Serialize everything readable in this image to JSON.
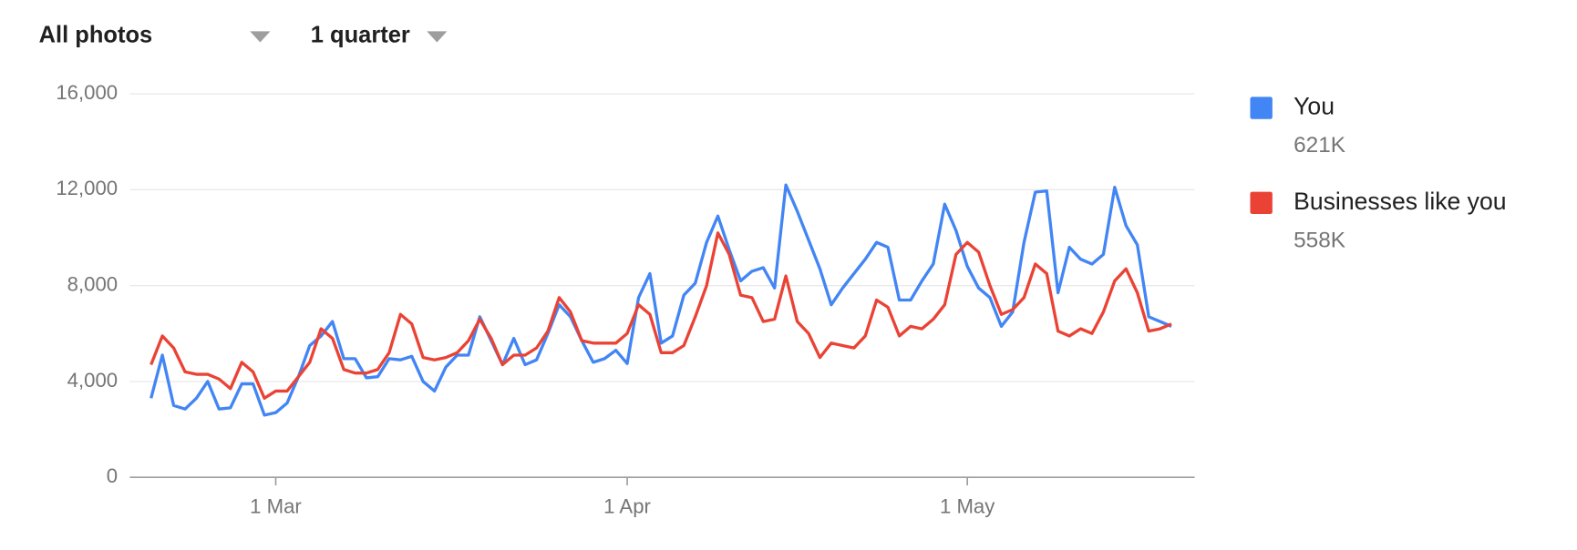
{
  "filters": {
    "photos": "All photos",
    "period": "1 quarter"
  },
  "chart_data": {
    "type": "line",
    "categories": [
      null,
      null,
      null,
      null,
      null,
      null,
      null,
      null,
      null,
      null,
      null,
      "1 Mar",
      null,
      null,
      null,
      null,
      null,
      null,
      null,
      null,
      null,
      null,
      null,
      null,
      null,
      null,
      null,
      null,
      null,
      null,
      null,
      null,
      null,
      null,
      null,
      null,
      null,
      null,
      null,
      null,
      null,
      null,
      "1 Apr",
      null,
      null,
      null,
      null,
      null,
      null,
      null,
      null,
      null,
      null,
      null,
      null,
      null,
      null,
      null,
      null,
      null,
      null,
      null,
      null,
      null,
      null,
      null,
      null,
      null,
      null,
      null,
      null,
      null,
      "1 May",
      null,
      null,
      null,
      null,
      null,
      null,
      null,
      null,
      null,
      null,
      null,
      null,
      null,
      null,
      null,
      null,
      null,
      null
    ],
    "series": [
      {
        "name": "You",
        "summary": "621K",
        "color": "#4285f4",
        "values": [
          3300,
          5100,
          3000,
          2850,
          3300,
          4000,
          2850,
          2900,
          3900,
          3900,
          2600,
          2700,
          3100,
          4200,
          5500,
          5900,
          6500,
          4950,
          4950,
          4150,
          4200,
          4950,
          4900,
          5050,
          4000,
          3600,
          4600,
          5100,
          5100,
          6700,
          5700,
          4700,
          5800,
          4700,
          4900,
          6000,
          7200,
          6700,
          5700,
          4800,
          4950,
          5300,
          4750,
          7500,
          8500,
          5600,
          5900,
          7600,
          8100,
          9800,
          10900,
          9500,
          8200,
          8600,
          8750,
          7900,
          12200,
          11100,
          9900,
          8700,
          7200,
          7900,
          8500,
          9100,
          9800,
          9600,
          7400,
          7400,
          8200,
          8900,
          11400,
          10300,
          8800,
          7900,
          7500,
          6300,
          6900,
          9800,
          11900,
          11950,
          7700,
          9600,
          9100,
          8900,
          9300,
          12100,
          10500,
          9700,
          6700,
          6500,
          6300
        ]
      },
      {
        "name": "Businesses like you",
        "summary": "558K",
        "color": "#ea4335",
        "values": [
          4700,
          5900,
          5400,
          4400,
          4300,
          4300,
          4100,
          3700,
          4800,
          4400,
          3300,
          3600,
          3600,
          4200,
          4800,
          6200,
          5800,
          4500,
          4350,
          4350,
          4500,
          5200,
          6800,
          6400,
          5000,
          4900,
          5000,
          5200,
          5700,
          6600,
          5800,
          4700,
          5100,
          5100,
          5400,
          6100,
          7500,
          6900,
          5700,
          5600,
          5600,
          5600,
          6000,
          7200,
          6800,
          5200,
          5200,
          5500,
          6700,
          8000,
          10200,
          9300,
          7600,
          7500,
          6500,
          6600,
          8400,
          6500,
          6000,
          5000,
          5600,
          5500,
          5400,
          5900,
          7400,
          7100,
          5900,
          6300,
          6200,
          6600,
          7200,
          9300,
          9800,
          9400,
          8000,
          6800,
          7000,
          7500,
          8900,
          8500,
          6100,
          5900,
          6200,
          6000,
          6900,
          8200,
          8700,
          7700,
          6100,
          6200,
          6400
        ]
      }
    ],
    "ylim": [
      0,
      16000
    ],
    "yticks": [
      0,
      {
        "value": 4000,
        "label": "4,000"
      },
      {
        "value": 8000,
        "label": "8,000"
      },
      {
        "value": 12000,
        "label": "12,000"
      },
      {
        "value": 16000,
        "label": "16,000"
      }
    ],
    "grid": true,
    "legend": "right"
  }
}
